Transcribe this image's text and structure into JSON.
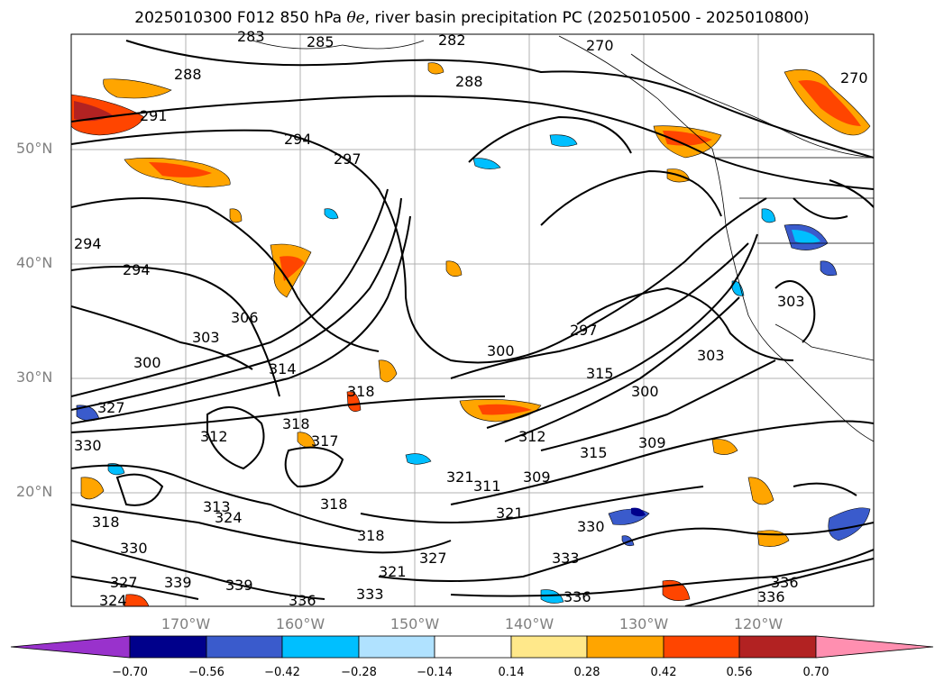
{
  "title": {
    "prefix": "2025010300 F012 850 hPa ",
    "symbol": "θe",
    "suffix": ", river basin precipitation PC (2025010500 - 2025010800)"
  },
  "lat_labels": [
    "50°N",
    "40°N",
    "30°N",
    "20°N"
  ],
  "lon_labels": [
    "170°W",
    "160°W",
    "150°W",
    "140°W",
    "130°W",
    "120°W"
  ],
  "contour_labels": [
    "283",
    "285",
    "282",
    "270",
    "288",
    "288",
    "270",
    "291",
    "294",
    "297",
    "294",
    "294",
    "303",
    "306",
    "300",
    "297",
    "300",
    "303",
    "303",
    "300",
    "314",
    "318",
    "315",
    "312",
    "315",
    "309",
    "327",
    "318",
    "321",
    "317",
    "312",
    "321",
    "311",
    "313",
    "318",
    "324",
    "318",
    "318",
    "321",
    "330",
    "330",
    "333",
    "327",
    "327",
    "336",
    "339",
    "333",
    "336",
    "336",
    "339",
    "336",
    "324",
    "309",
    "330"
  ],
  "colorbar": {
    "ticks": [
      "−0.70",
      "−0.56",
      "−0.42",
      "−0.28",
      "−0.14",
      "0.14",
      "0.28",
      "0.42",
      "0.56",
      "0.70"
    ],
    "colors": [
      "#9932cc",
      "#00008b",
      "#3a5bcc",
      "#00bfff",
      "#b0e2ff",
      "#ffffff",
      "#ffe88a",
      "#ffa500",
      "#ff4500",
      "#b22222",
      "#ff8fb0"
    ]
  }
}
